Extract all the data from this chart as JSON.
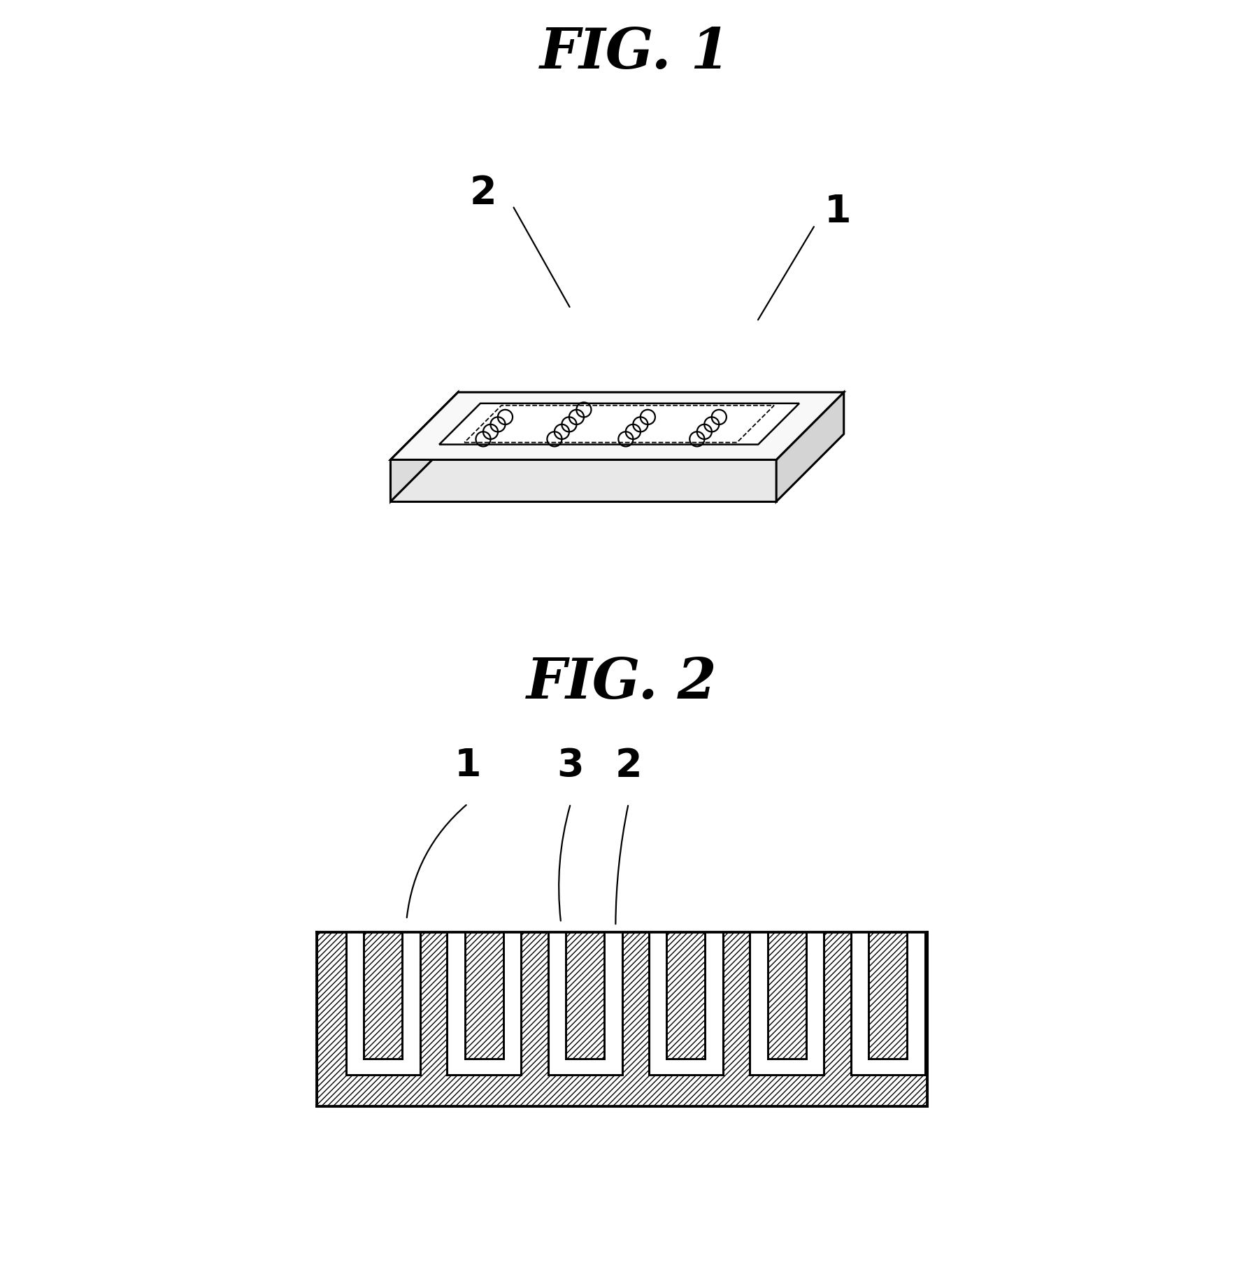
{
  "fig1_title": "FIG. 1",
  "fig2_title": "FIG. 2",
  "bg_color": "#ffffff",
  "line_color": "#000000",
  "label1": "1",
  "label2": "2",
  "label3": "3",
  "hatch": "////",
  "fig1_circles_rows": 4,
  "fig1_circles_cols": 4
}
